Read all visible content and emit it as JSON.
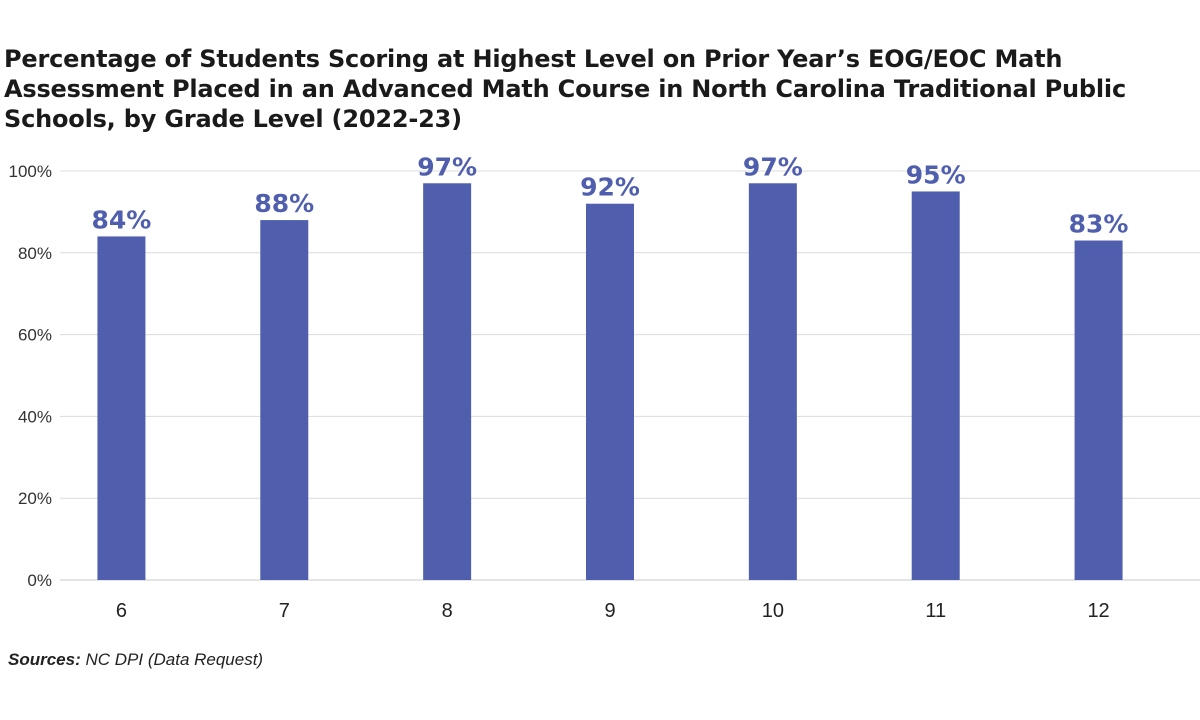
{
  "chart_data": {
    "type": "bar",
    "title": "Percentage of Students Scoring at Highest Level on Prior Year’s EOG/EOC Math Assessment Placed in an Advanced Math Course in North Carolina Traditional Public Schools, by Grade Level (2022-23)",
    "categories": [
      "6",
      "7",
      "8",
      "9",
      "10",
      "11",
      "12"
    ],
    "values": [
      84,
      88,
      97,
      92,
      97,
      95,
      83
    ],
    "data_labels": [
      "84%",
      "88%",
      "97%",
      "92%",
      "97%",
      "95%",
      "83%"
    ],
    "ylim": [
      0,
      100
    ],
    "yticks": [
      0,
      20,
      40,
      60,
      80,
      100
    ],
    "ytick_labels": [
      "0%",
      "20%",
      "40%",
      "60%",
      "80%",
      "100%"
    ],
    "xlabel": "",
    "ylabel": "",
    "grid": true,
    "bar_color": "#4f5fad",
    "label_color": "#4f5fad"
  },
  "source": {
    "label": "Sources:",
    "text": "NC DPI (Data Request)"
  }
}
